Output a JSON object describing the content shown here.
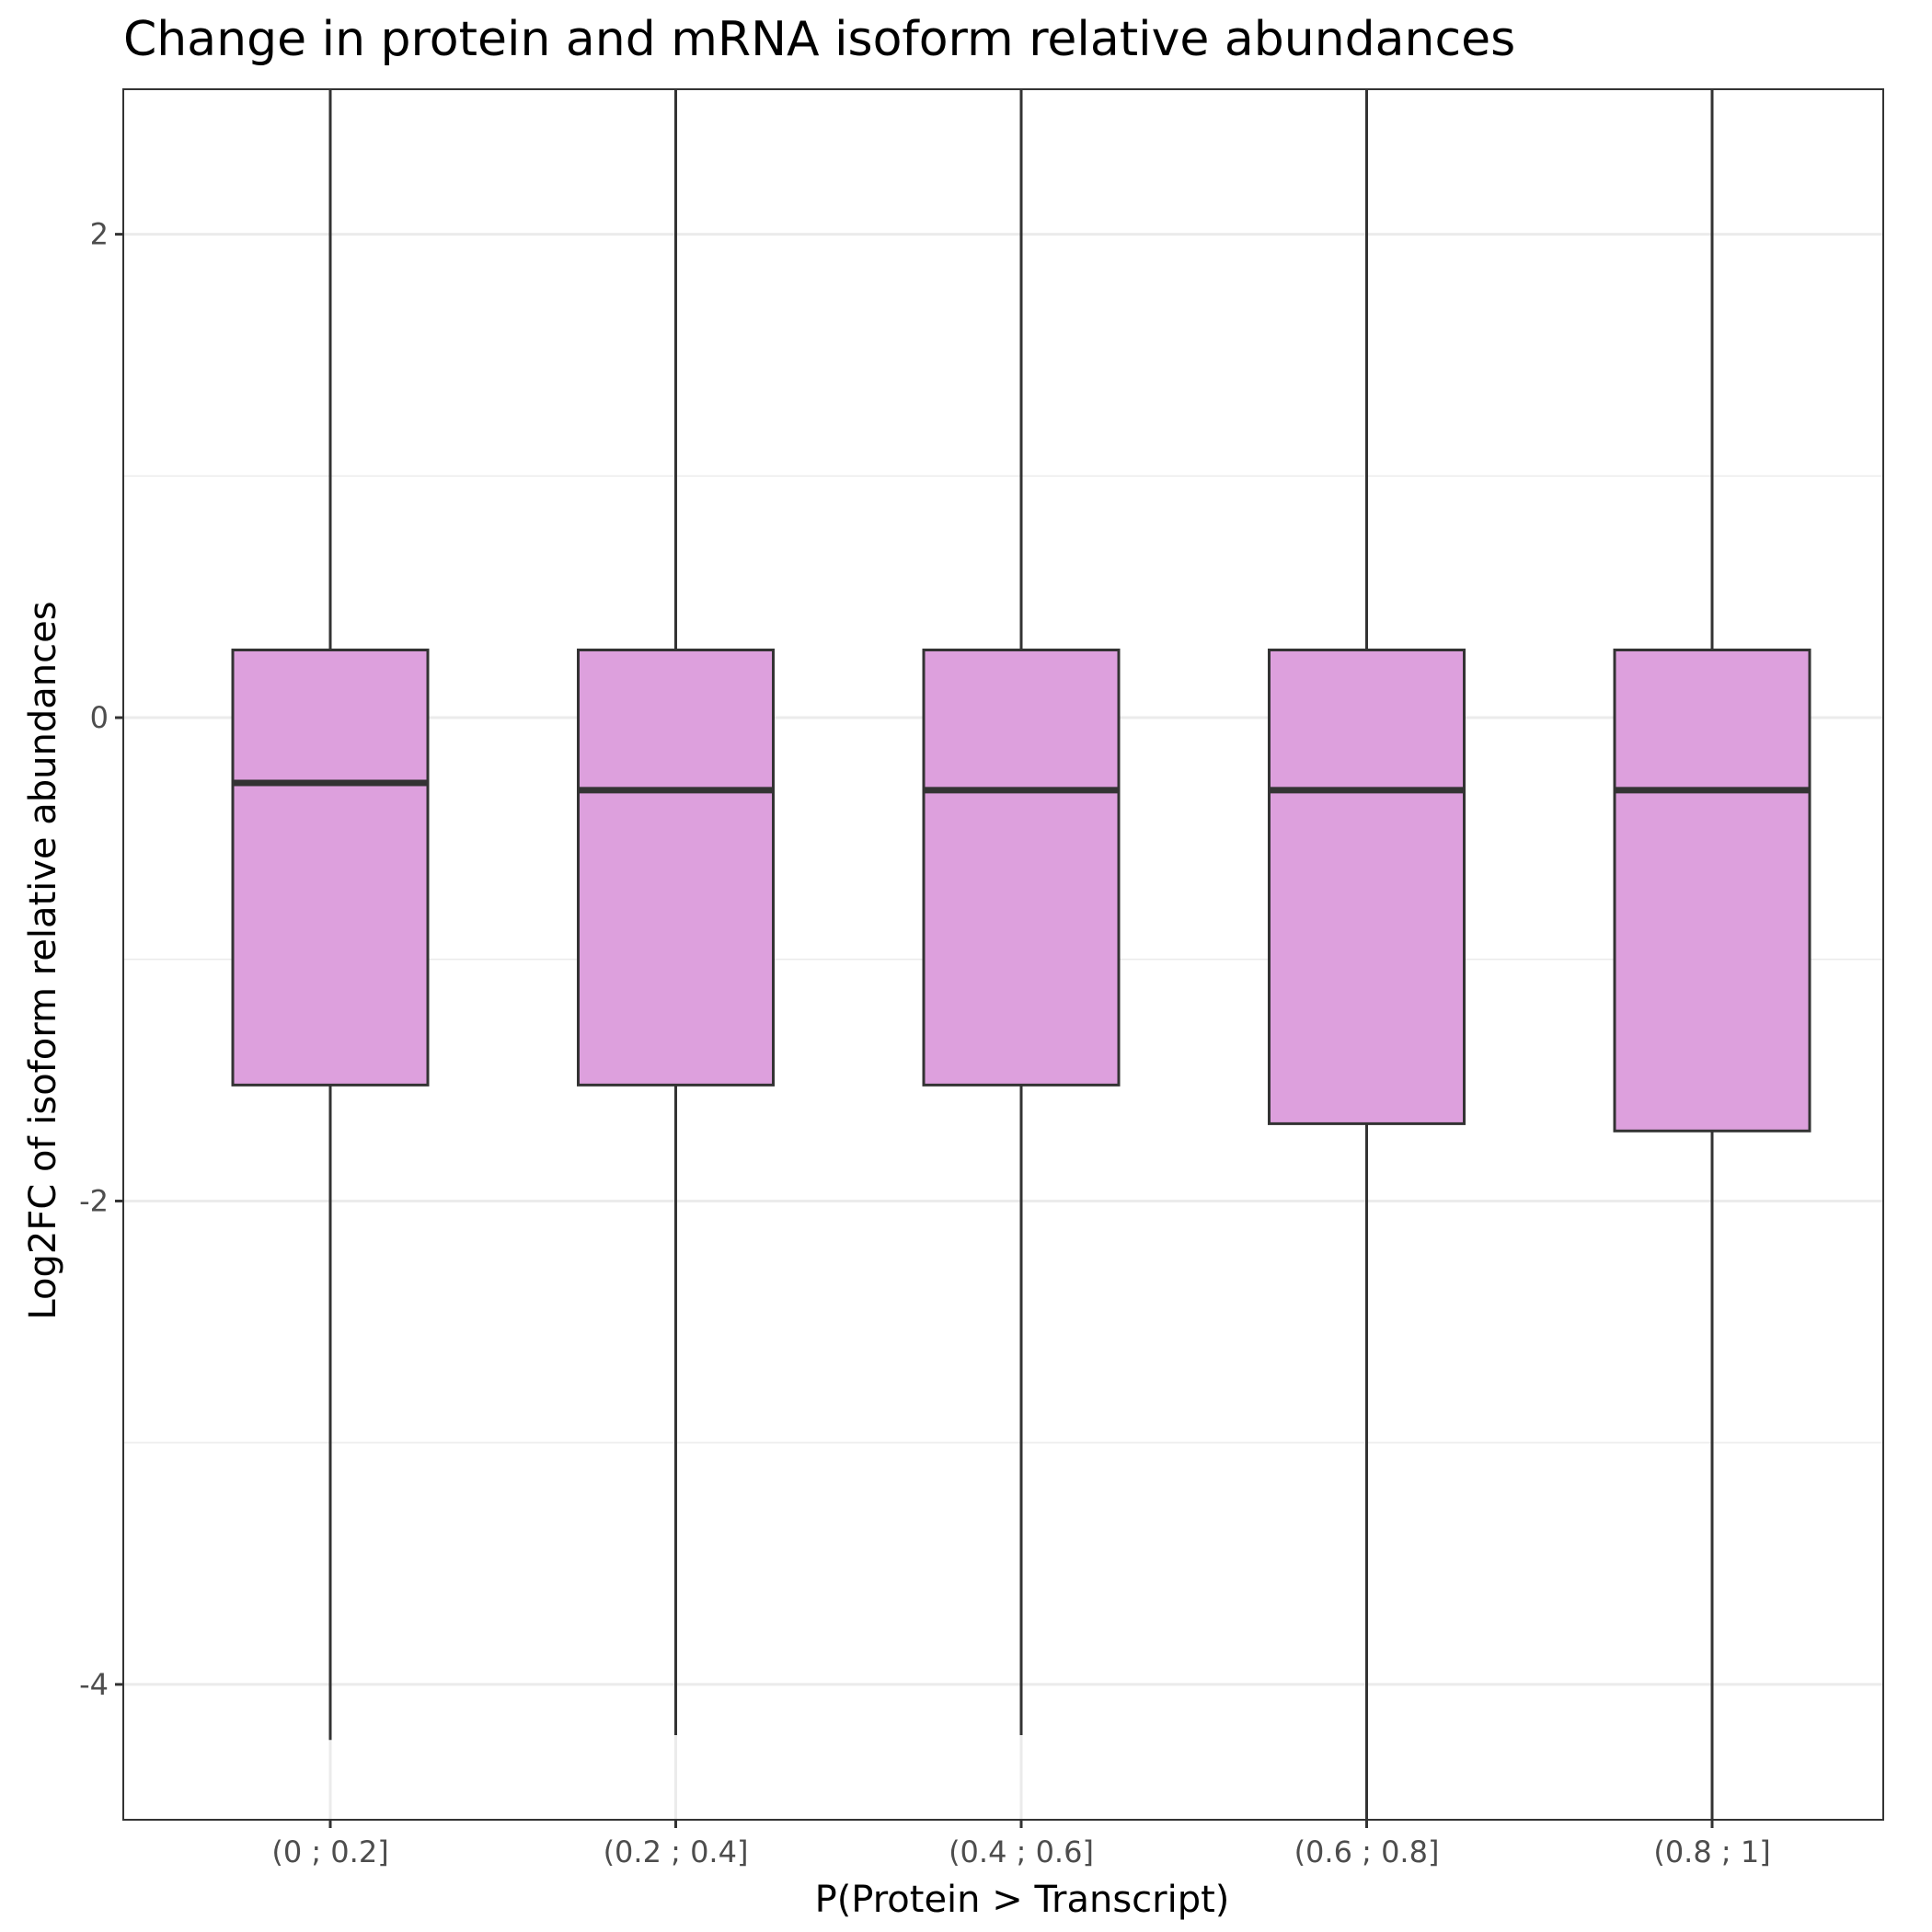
{
  "chart_data": {
    "type": "boxplot",
    "title": "Change in protein and mRNA isoform relative abundances",
    "xlabel": "P(Protein > Transcript)",
    "ylabel": "Log2FC of isoform relative abundances",
    "categories": [
      "(0 ; 0.2]",
      "(0.2 ; 0.4]",
      "(0.4 ; 0.6]",
      "(0.6 ; 0.8]",
      "(0.8 ; 1]"
    ],
    "boxes": [
      {
        "category": "(0 ; 0.2]",
        "whisker_low": -4.23,
        "q1": -1.52,
        "median": -0.27,
        "q3": 0.28,
        "whisker_high": 2.6
      },
      {
        "category": "(0.2 ; 0.4]",
        "whisker_low": -4.21,
        "q1": -1.52,
        "median": -0.3,
        "q3": 0.28,
        "whisker_high": 2.6
      },
      {
        "category": "(0.4 ; 0.6]",
        "whisker_low": -4.21,
        "q1": -1.52,
        "median": -0.3,
        "q3": 0.28,
        "whisker_high": 2.6
      },
      {
        "category": "(0.6 ; 0.8]",
        "whisker_low": -4.56,
        "q1": -1.68,
        "median": -0.3,
        "q3": 0.28,
        "whisker_high": 2.6
      },
      {
        "category": "(0.8 ; 1]",
        "whisker_low": -4.56,
        "q1": -1.71,
        "median": -0.3,
        "q3": 0.28,
        "whisker_high": 2.6
      }
    ],
    "ylim": [
      -4.56,
      2.6
    ],
    "yticks": [
      2,
      0,
      -2,
      -4
    ],
    "ytick_labels": [
      "2",
      "0",
      "-2",
      "-4"
    ],
    "grid": true,
    "box_fill": "#dda0dd",
    "box_stroke": "#333333",
    "grid_color": "#ebebeb"
  }
}
